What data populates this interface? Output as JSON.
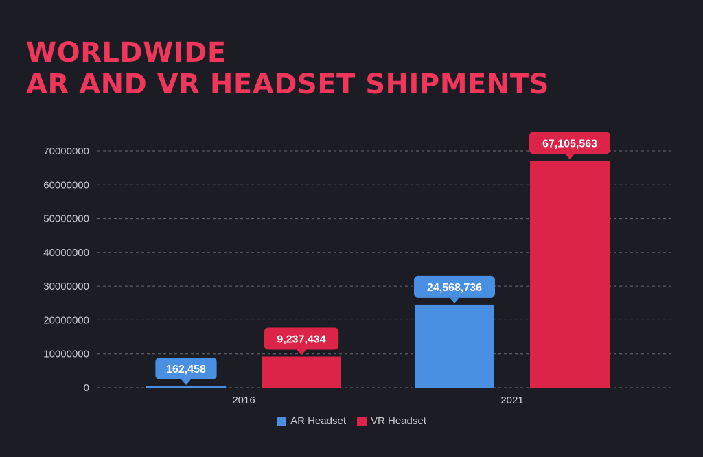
{
  "chart_data": {
    "type": "bar",
    "title_lines": [
      "WORLDWIDE",
      "AR AND VR HEADSET SHIPMENTS"
    ],
    "categories": [
      "2016",
      "2021"
    ],
    "series": [
      {
        "name": "AR Headset",
        "color": "#4a90e2",
        "values": [
          162458,
          24568736
        ],
        "labels": [
          "162,458",
          "24,568,736"
        ]
      },
      {
        "name": "VR Headset",
        "color": "#dc2348",
        "values": [
          9237434,
          67105563
        ],
        "labels": [
          "9,237,434",
          "67,105,563"
        ]
      }
    ],
    "y_ticks": [
      "0",
      "10000000",
      "20000000",
      "30000000",
      "40000000",
      "50000000",
      "60000000",
      "70000000"
    ],
    "ylim": [
      0,
      70000000
    ],
    "grid": true,
    "legend_position": "bottom-center",
    "title_color": "#f0365a",
    "background": "#1c1c24"
  }
}
